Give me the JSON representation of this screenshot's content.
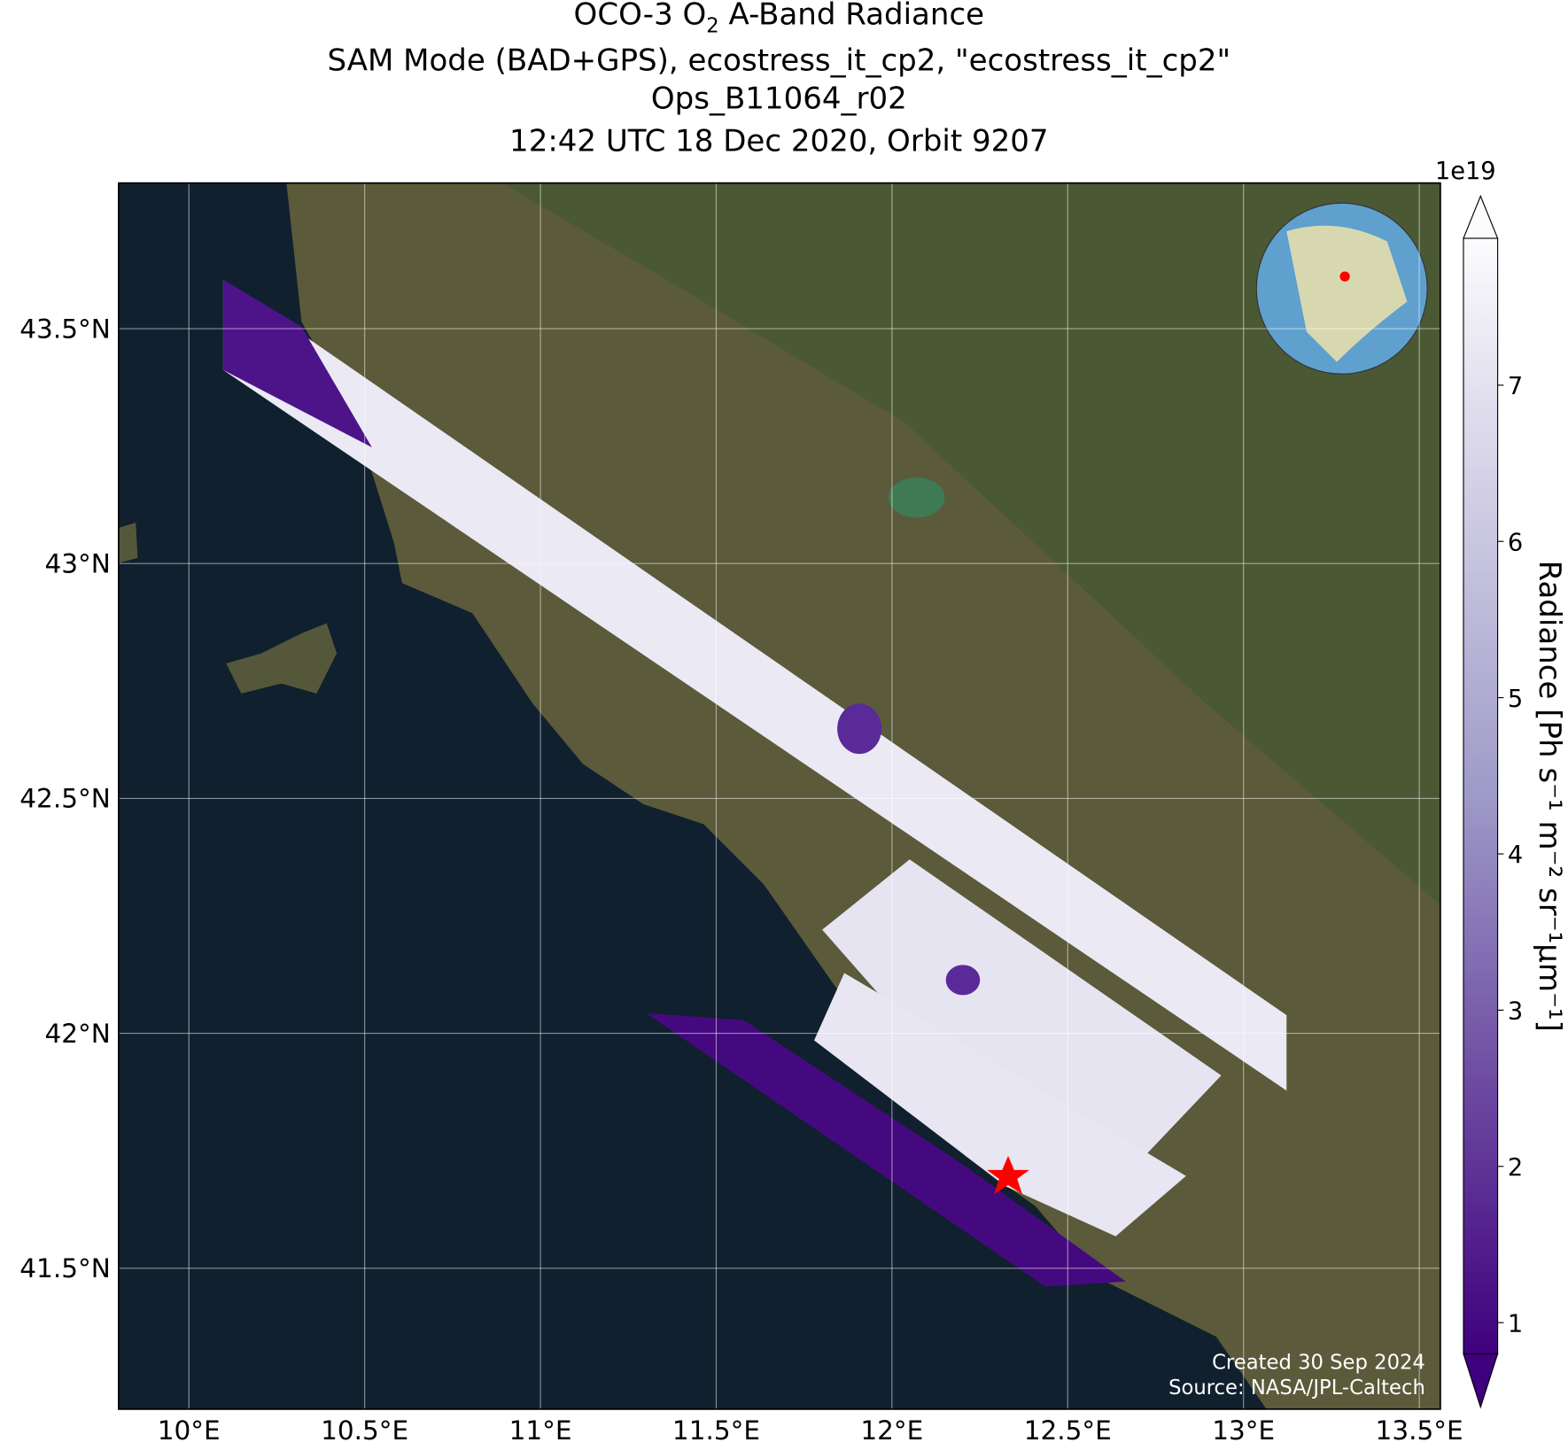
{
  "title": {
    "line1_parts": [
      "OCO-3 O",
      "2",
      " A-Band Radiance"
    ],
    "line2": "SAM Mode (BAD+GPS), ecostress_it_cp2, \"ecostress_it_cp2\"",
    "line3": "Ops_B11064_r02",
    "line4": "12:42 UTC 18 Dec 2020, Orbit 9207"
  },
  "map": {
    "xlim": [
      9.8,
      13.56
    ],
    "ylim": [
      41.2,
      43.81
    ],
    "xticks": [
      {
        "value": 10,
        "label": "10°E"
      },
      {
        "value": 10.5,
        "label": "10.5°E"
      },
      {
        "value": 11,
        "label": "11°E"
      },
      {
        "value": 11.5,
        "label": "11.5°E"
      },
      {
        "value": 12,
        "label": "12°E"
      },
      {
        "value": 12.5,
        "label": "12.5°E"
      },
      {
        "value": 13,
        "label": "13°E"
      },
      {
        "value": 13.5,
        "label": "13.5°E"
      }
    ],
    "yticks": [
      {
        "value": 41.5,
        "label": "41.5°N"
      },
      {
        "value": 42,
        "label": "42°N"
      },
      {
        "value": 42.5,
        "label": "42.5°N"
      },
      {
        "value": 43,
        "label": "43°N"
      },
      {
        "value": 43.5,
        "label": "43.5°N"
      }
    ],
    "grid": true
  },
  "colorbar": {
    "label": "Radiance [Ph s⁻¹ m⁻² sr⁻¹μm⁻¹]",
    "exponent": "1e19",
    "lim": [
      0.8,
      7.94
    ],
    "ticks": [
      1,
      2,
      3,
      4,
      5,
      6,
      7
    ],
    "color_low": "#3f007d",
    "color_high": "#fcfbfd"
  },
  "credits": {
    "created": "Created 30 Sep 2024",
    "source": "Source: NASA/JPL-Caltech"
  }
}
